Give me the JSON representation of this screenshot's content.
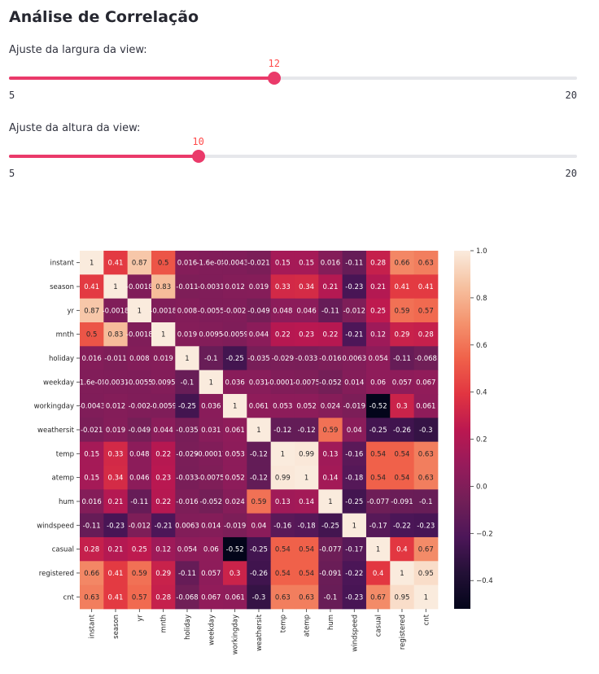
{
  "title": "Análise de Correlação",
  "slider_width": {
    "label": "Ajuste da largura da view:",
    "value": 12,
    "min": 5,
    "max": 20,
    "min_label": "5",
    "max_label": "20",
    "value_label": "12"
  },
  "slider_height": {
    "label": "Ajuste da altura da view:",
    "value": 10,
    "min": 5,
    "max": 20,
    "min_label": "5",
    "max_label": "20",
    "value_label": "10"
  },
  "colors": {
    "accent": "#ea3a6a",
    "track": "#e6e7eb",
    "value_text": "#ff4b4b"
  },
  "chart_data": {
    "type": "heatmap",
    "labels": [
      "instant",
      "season",
      "yr",
      "mnth",
      "holiday",
      "weekday",
      "workingday",
      "weathersit",
      "temp",
      "atemp",
      "hum",
      "windspeed",
      "casual",
      "registered",
      "cnt"
    ],
    "values": [
      [
        1,
        0.41,
        0.87,
        0.5,
        0.016,
        -1.6e-05,
        -0.0043,
        -0.021,
        0.15,
        0.15,
        0.016,
        -0.11,
        0.28,
        0.66,
        0.63
      ],
      [
        0.41,
        1,
        -0.0018,
        0.83,
        -0.011,
        -0.0031,
        0.012,
        0.019,
        0.33,
        0.34,
        0.21,
        -0.23,
        0.21,
        0.41,
        0.41
      ],
      [
        0.87,
        -0.0018,
        1,
        -0.0018,
        0.008,
        -0.0055,
        -0.002,
        -0.049,
        0.048,
        0.046,
        -0.11,
        -0.012,
        0.25,
        0.59,
        0.57
      ],
      [
        0.5,
        0.83,
        -0.0018,
        1,
        0.019,
        0.0095,
        -0.0059,
        0.044,
        0.22,
        0.23,
        0.22,
        -0.21,
        0.12,
        0.29,
        0.28
      ],
      [
        0.016,
        -0.011,
        0.008,
        0.019,
        1,
        -0.1,
        -0.25,
        -0.035,
        -0.029,
        -0.033,
        -0.016,
        0.0063,
        0.054,
        -0.11,
        -0.068
      ],
      [
        -1.6e-05,
        -0.0031,
        -0.0055,
        0.0095,
        -0.1,
        1,
        0.036,
        0.031,
        -0.00017,
        -0.0075,
        -0.052,
        0.014,
        0.06,
        0.057,
        0.067
      ],
      [
        -0.0043,
        0.012,
        -0.002,
        -0.0059,
        -0.25,
        0.036,
        1,
        0.061,
        0.053,
        0.052,
        0.024,
        -0.019,
        -0.52,
        0.3,
        0.061
      ],
      [
        -0.021,
        0.019,
        -0.049,
        0.044,
        -0.035,
        0.031,
        0.061,
        1,
        -0.12,
        -0.12,
        0.59,
        0.04,
        -0.25,
        -0.26,
        -0.3
      ],
      [
        0.15,
        0.33,
        0.048,
        0.22,
        -0.029,
        -0.00017,
        0.053,
        -0.12,
        1,
        0.99,
        0.13,
        -0.16,
        0.54,
        0.54,
        0.63
      ],
      [
        0.15,
        0.34,
        0.046,
        0.23,
        -0.033,
        -0.0075,
        0.052,
        -0.12,
        0.99,
        1,
        0.14,
        -0.18,
        0.54,
        0.54,
        0.63
      ],
      [
        0.016,
        0.21,
        -0.11,
        0.22,
        -0.016,
        -0.052,
        0.024,
        0.59,
        0.13,
        0.14,
        1,
        -0.25,
        -0.077,
        -0.091,
        -0.1
      ],
      [
        -0.11,
        -0.23,
        -0.012,
        -0.21,
        0.0063,
        0.014,
        -0.019,
        0.04,
        -0.16,
        -0.18,
        -0.25,
        1,
        -0.17,
        -0.22,
        -0.23
      ],
      [
        0.28,
        0.21,
        0.25,
        0.12,
        0.054,
        0.06,
        -0.52,
        -0.25,
        0.54,
        0.54,
        -0.077,
        -0.17,
        1,
        0.4,
        0.67
      ],
      [
        0.66,
        0.41,
        0.59,
        0.29,
        -0.11,
        0.057,
        0.3,
        -0.26,
        0.54,
        0.54,
        -0.091,
        -0.22,
        0.4,
        1,
        0.95
      ],
      [
        0.63,
        0.41,
        0.57,
        0.28,
        -0.068,
        0.067,
        0.061,
        -0.3,
        0.63,
        0.63,
        -0.1,
        -0.23,
        0.67,
        0.95,
        1
      ]
    ],
    "cell_text": [
      [
        "1",
        "0.41",
        "0.87",
        "0.5",
        "0.016",
        "-1.6e-05",
        "-0.0043",
        "-0.021",
        "0.15",
        "0.15",
        "0.016",
        "-0.11",
        "0.28",
        "0.66",
        "0.63"
      ],
      [
        "0.41",
        "1",
        "-0.0018",
        "0.83",
        "-0.011",
        "-0.0031",
        "0.012",
        "0.019",
        "0.33",
        "0.34",
        "0.21",
        "-0.23",
        "0.21",
        "0.41",
        "0.41"
      ],
      [
        "0.87",
        "-0.0018",
        "1",
        "-0.0018",
        "0.008",
        "-0.0055",
        "-0.002",
        "-0.049",
        "0.048",
        "0.046",
        "-0.11",
        "-0.012",
        "0.25",
        "0.59",
        "0.57"
      ],
      [
        "0.5",
        "0.83",
        "-0.0018",
        "1",
        "0.019",
        "0.0095",
        "-0.0059",
        "0.044",
        "0.22",
        "0.23",
        "0.22",
        "-0.21",
        "0.12",
        "0.29",
        "0.28"
      ],
      [
        "0.016",
        "-0.011",
        "0.008",
        "0.019",
        "1",
        "-0.1",
        "-0.25",
        "-0.035",
        "-0.029",
        "-0.033",
        "-0.016",
        "0.0063",
        "0.054",
        "-0.11",
        "-0.068"
      ],
      [
        "-1.6e-05",
        "-0.0031",
        "-0.0055",
        "0.0095",
        "-0.1",
        "1",
        "0.036",
        "0.031",
        "-0.00017",
        "-0.0075",
        "-0.052",
        "0.014",
        "0.06",
        "0.057",
        "0.067"
      ],
      [
        "-0.0043",
        "0.012",
        "-0.002",
        "-0.0059",
        "-0.25",
        "0.036",
        "1",
        "0.061",
        "0.053",
        "0.052",
        "0.024",
        "-0.019",
        "-0.52",
        "0.3",
        "0.061"
      ],
      [
        "-0.021",
        "0.019",
        "-0.049",
        "0.044",
        "-0.035",
        "0.031",
        "0.061",
        "1",
        "-0.12",
        "-0.12",
        "0.59",
        "0.04",
        "-0.25",
        "-0.26",
        "-0.3"
      ],
      [
        "0.15",
        "0.33",
        "0.048",
        "0.22",
        "-0.029",
        "-0.00017",
        "0.053",
        "-0.12",
        "1",
        "0.99",
        "0.13",
        "-0.16",
        "0.54",
        "0.54",
        "0.63"
      ],
      [
        "0.15",
        "0.34",
        "0.046",
        "0.23",
        "-0.033",
        "-0.0075",
        "0.052",
        "-0.12",
        "0.99",
        "1",
        "0.14",
        "-0.18",
        "0.54",
        "0.54",
        "0.63"
      ],
      [
        "0.016",
        "0.21",
        "-0.11",
        "0.22",
        "-0.016",
        "-0.052",
        "0.024",
        "0.59",
        "0.13",
        "0.14",
        "1",
        "-0.25",
        "-0.077",
        "-0.091",
        "-0.1"
      ],
      [
        "-0.11",
        "-0.23",
        "-0.012",
        "-0.21",
        "0.0063",
        "0.014",
        "-0.019",
        "0.04",
        "-0.16",
        "-0.18",
        "-0.25",
        "1",
        "-0.17",
        "-0.22",
        "-0.23"
      ],
      [
        "0.28",
        "0.21",
        "0.25",
        "0.12",
        "0.054",
        "0.06",
        "-0.52",
        "-0.25",
        "0.54",
        "0.54",
        "-0.077",
        "-0.17",
        "1",
        "0.4",
        "0.67"
      ],
      [
        "0.66",
        "0.41",
        "0.59",
        "0.29",
        "-0.11",
        "0.057",
        "0.3",
        "-0.26",
        "0.54",
        "0.54",
        "-0.091",
        "-0.22",
        "0.4",
        "1",
        "0.95"
      ],
      [
        "0.63",
        "0.41",
        "0.57",
        "0.28",
        "-0.068",
        "0.067",
        "0.061",
        "-0.3",
        "0.63",
        "0.63",
        "-0.1",
        "-0.23",
        "0.67",
        "0.95",
        "1"
      ]
    ],
    "colorbar_range": [
      -0.52,
      1.0
    ],
    "colorbar_ticks": [
      -0.4,
      -0.2,
      0.0,
      0.2,
      0.4,
      0.6,
      0.8,
      1.0
    ],
    "colorbar_tick_labels": [
      "−0.4",
      "−0.2",
      "0.0",
      "0.2",
      "0.4",
      "0.6",
      "0.8",
      "1.0"
    ],
    "colormap": "rocket"
  }
}
